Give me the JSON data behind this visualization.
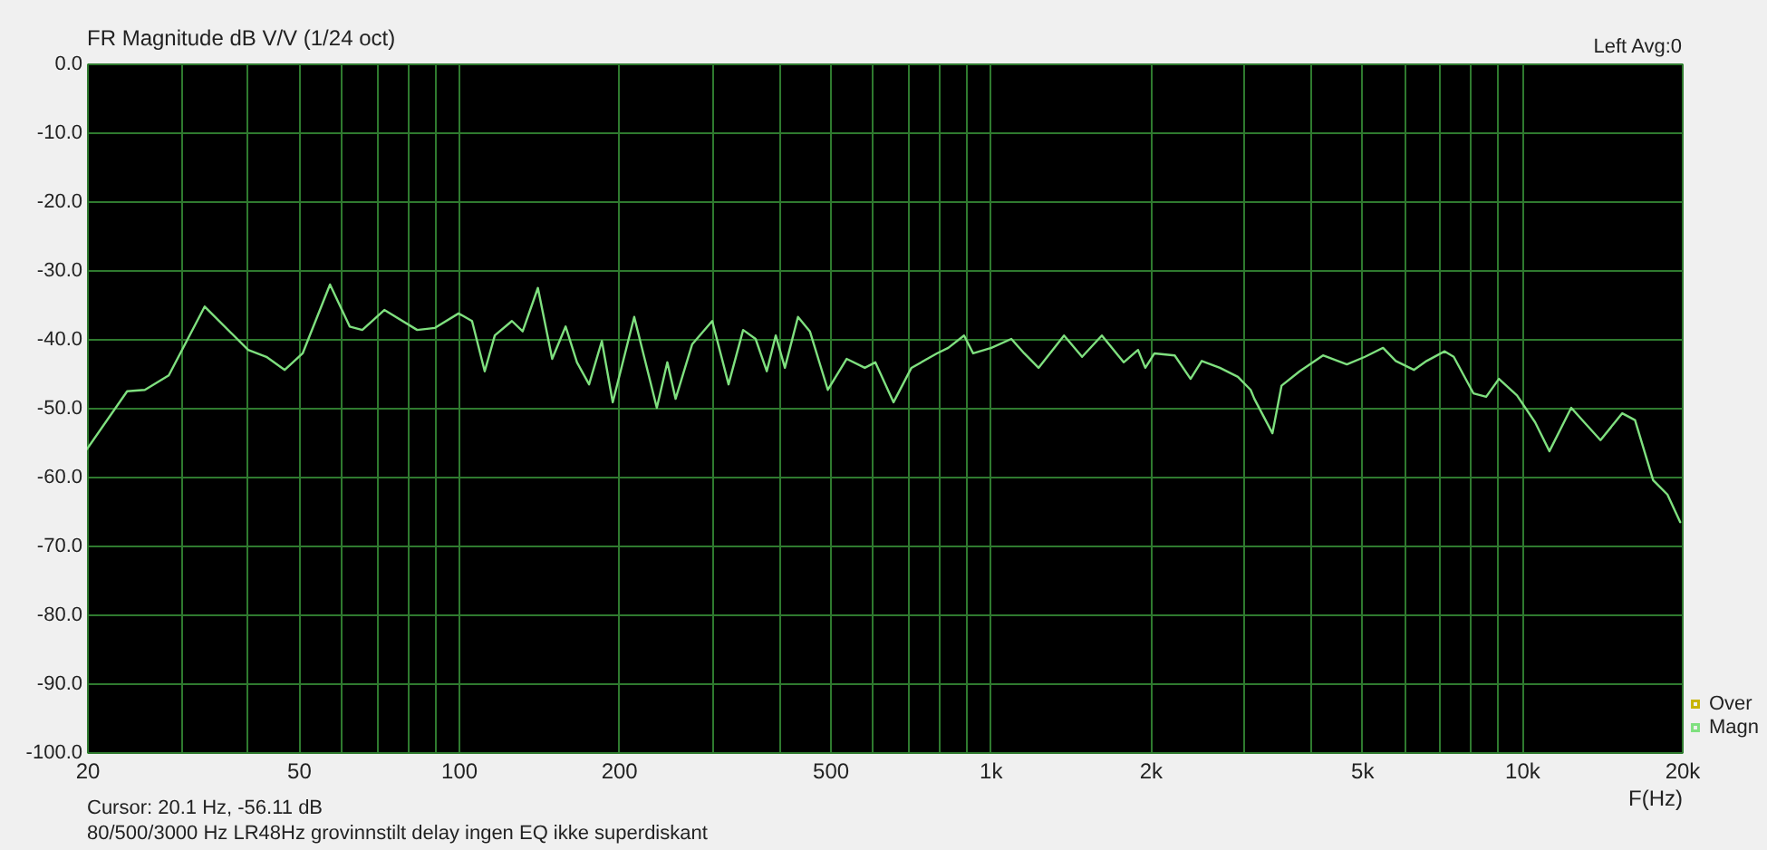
{
  "chart_data": {
    "type": "line",
    "title": "FR Magnitude dB V/V (1/24 oct)",
    "xlabel": "F(Hz)",
    "annotations": [
      "Left  Avg:0",
      "Cursor:   20.1 Hz, -56.11 dB",
      "80/500/3000 Hz LR48Hz grovinnstilt delay ingen EQ ikke superdiskant"
    ],
    "log": "x",
    "grid": true,
    "legend": "bottom right",
    "line_style": "solid",
    "marker": "none",
    "xlim": [
      20,
      20000
    ],
    "ylim": [
      -100,
      0
    ],
    "xticks": [
      20,
      {
        "value": 30,
        "label": null
      },
      {
        "value": 40,
        "label": null
      },
      50,
      {
        "value": 60,
        "label": null
      },
      {
        "value": 70,
        "label": null
      },
      {
        "value": 80,
        "label": null
      },
      {
        "value": 90,
        "label": null
      },
      100,
      200,
      {
        "value": 300,
        "label": null
      },
      {
        "value": 400,
        "label": null
      },
      500,
      {
        "value": 600,
        "label": null
      },
      {
        "value": 700,
        "label": null
      },
      {
        "value": 800,
        "label": null
      },
      {
        "value": 900,
        "label": null
      },
      {
        "value": 1000,
        "label": "1k"
      },
      {
        "value": 2000,
        "label": "2k"
      },
      {
        "value": 3000,
        "label": null
      },
      {
        "value": 4000,
        "label": null
      },
      {
        "value": 5000,
        "label": "5k"
      },
      {
        "value": 6000,
        "label": null
      },
      {
        "value": 7000,
        "label": null
      },
      {
        "value": 8000,
        "label": null
      },
      {
        "value": 9000,
        "label": null
      },
      {
        "value": 10000,
        "label": "10k"
      },
      {
        "value": 20000,
        "label": "20k"
      }
    ],
    "yticks": [
      {
        "value": 0,
        "label": "0.0"
      },
      {
        "value": -10,
        "label": "-10.0"
      },
      {
        "value": -20,
        "label": "-20.0"
      },
      {
        "value": -30,
        "label": "-30.0"
      },
      {
        "value": -40,
        "label": "-40.0"
      },
      {
        "value": -50,
        "label": "-50.0"
      },
      {
        "value": -60,
        "label": "-60.0"
      },
      {
        "value": -70,
        "label": "-70.0"
      },
      {
        "value": -80,
        "label": "-80.0"
      },
      {
        "value": -90,
        "label": "-90.0"
      },
      {
        "value": -100,
        "label": "-100.0"
      }
    ],
    "series": [
      {
        "name": "Over",
        "color": "#c8b400"
      },
      {
        "name": "Magn",
        "color": "#7fe07f",
        "x": [
          20,
          23.8,
          25.7,
          28.5,
          33.3,
          40.2,
          43.5,
          47.1,
          50.9,
          57.3,
          62.4,
          65.9,
          72.5,
          83.6,
          90.3,
          100,
          106,
          112,
          117,
          126,
          132,
          141,
          150,
          159,
          167,
          176,
          186,
          195,
          214,
          236,
          247,
          256,
          275,
          300,
          322,
          343,
          362,
          380,
          395,
          411,
          435,
          458,
          495,
          537,
          581,
          608,
          658,
          711,
          794,
          834,
          893,
          929,
          1005,
          1096,
          1159,
          1233,
          1377,
          1489,
          1622,
          1783,
          1897,
          1958,
          2037,
          2224,
          2382,
          2500,
          2704,
          2924,
          3090,
          3140,
          3396,
          3532,
          3820,
          4227,
          4688,
          5070,
          5483,
          5794,
          6266,
          6622,
          7161,
          7447,
          8110,
          8570,
          9057,
          9795,
          10594,
          11272,
          12388,
          13002,
          14061,
          15453,
          16331,
          17661,
          18793,
          19862
        ],
        "values": [
          -56,
          -47.6,
          -47.4,
          -45.3,
          -35.3,
          -41.6,
          -42.6,
          -44.5,
          -42.1,
          -32.1,
          -38.2,
          -38.7,
          -35.8,
          -38.7,
          -38.4,
          -36.3,
          -37.4,
          -44.7,
          -39.5,
          -37.4,
          -38.9,
          -32.6,
          -42.9,
          -38.2,
          -43.4,
          -46.6,
          -40.3,
          -49.2,
          -36.8,
          -50,
          -43.4,
          -48.7,
          -40.8,
          -37.4,
          -46.6,
          -38.7,
          -40,
          -44.7,
          -39.5,
          -44.2,
          -36.8,
          -38.9,
          -47.4,
          -42.9,
          -44.2,
          -43.4,
          -49.2,
          -44.2,
          -42.1,
          -41.3,
          -39.5,
          -42.1,
          -41.3,
          -40,
          -42.1,
          -44.2,
          -39.5,
          -42.6,
          -39.5,
          -43.4,
          -41.6,
          -44.2,
          -42.1,
          -42.4,
          -45.8,
          -43.2,
          -44.2,
          -45.5,
          -47.4,
          -48.7,
          -53.7,
          -46.8,
          -44.7,
          -42.4,
          -43.7,
          -42.6,
          -41.3,
          -43.2,
          -44.5,
          -43.2,
          -41.8,
          -42.6,
          -47.9,
          -48.4,
          -45.8,
          -48.2,
          -52.1,
          -56.3,
          -50,
          -51.8,
          -54.7,
          -50.8,
          -51.8,
          -60.5,
          -62.6,
          -66.6
        ]
      }
    ]
  }
}
